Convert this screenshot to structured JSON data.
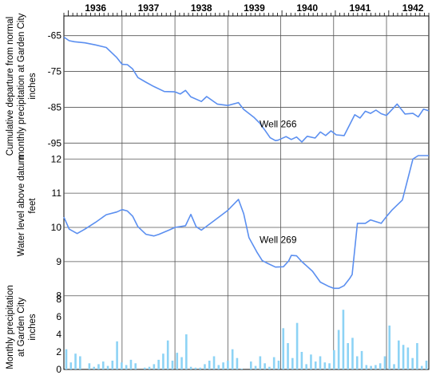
{
  "chart_data": {
    "type": "line",
    "years": [
      "1936",
      "1937",
      "1938",
      "1939",
      "1940",
      "1941",
      "1942"
    ],
    "xlim": [
      1935.9,
      1942.8
    ],
    "panels": {
      "precip_departure": {
        "ylabel": [
          "Cumulative departure from normal",
          "monthly precipitation at Garden City",
          "inches"
        ],
        "ylim": [
          -98.5,
          -59.5
        ],
        "ticks": [
          "-65",
          "-75",
          "-85",
          "-95"
        ],
        "tick_values": [
          -65,
          -75,
          -85,
          -95
        ],
        "series": {
          "name": "",
          "color": "#5b8ff0",
          "x": [
            1935.9,
            1936.0,
            1936.1,
            1936.3,
            1936.5,
            1936.7,
            1936.9,
            1937.0,
            1937.1,
            1937.2,
            1937.3,
            1937.45,
            1937.6,
            1937.8,
            1938.0,
            1938.1,
            1938.2,
            1938.3,
            1938.5,
            1938.6,
            1938.8,
            1939.0,
            1939.2,
            1939.3,
            1939.5,
            1939.6,
            1939.7,
            1939.8,
            1939.9,
            1939.95,
            1940.1,
            1940.2,
            1940.3,
            1940.4,
            1940.5,
            1940.65,
            1940.75,
            1940.85,
            1940.95,
            1941.05,
            1941.2,
            1941.4,
            1941.5,
            1941.6,
            1941.7,
            1941.8,
            1941.9,
            1942.0,
            1942.2,
            1942.35,
            1942.5,
            1942.6,
            1942.7,
            1942.8
          ],
          "y": [
            -65.4,
            -66.4,
            -66.7,
            -67.0,
            -67.6,
            -68.3,
            -71.1,
            -73.0,
            -73.1,
            -74.3,
            -76.7,
            -78.0,
            -79.2,
            -80.6,
            -80.7,
            -81.3,
            -80.3,
            -82.1,
            -83.4,
            -82.0,
            -84.1,
            -84.5,
            -83.7,
            -85.6,
            -87.9,
            -89.4,
            -91.4,
            -93.5,
            -94.3,
            -94.2,
            -93.2,
            -94.0,
            -93.3,
            -94.7,
            -93.1,
            -93.6,
            -91.9,
            -92.9,
            -91.6,
            -92.7,
            -92.9,
            -87.1,
            -88.0,
            -86.1,
            -86.7,
            -85.8,
            -86.8,
            -87.3,
            -84.1,
            -86.9,
            -86.7,
            -87.7,
            -85.5,
            -86.0
          ]
        },
        "label": "Well 266",
        "label_year": 1939.6,
        "label_value": -90.6
      },
      "water_level": {
        "ylabel": [
          "Water level above datum",
          "feet"
        ],
        "ylim": [
          7.9,
          12.1
        ],
        "ticks": [
          "12",
          "11",
          "10",
          "9",
          "8"
        ],
        "tick_values": [
          12,
          11,
          10,
          9,
          8
        ],
        "series": {
          "name": "",
          "color": "#5b8ff0",
          "x": [
            1935.9,
            1936.0,
            1936.15,
            1936.3,
            1936.5,
            1936.7,
            1936.9,
            1937.0,
            1937.1,
            1937.2,
            1937.3,
            1937.45,
            1937.6,
            1937.7,
            1937.9,
            1938.0,
            1938.2,
            1938.3,
            1938.4,
            1938.5,
            1938.7,
            1939.0,
            1939.2,
            1939.3,
            1939.4,
            1939.55,
            1939.65,
            1939.75,
            1939.9,
            1940.05,
            1940.15,
            1940.2,
            1940.3,
            1940.4,
            1940.6,
            1940.75,
            1940.9,
            1941.0,
            1941.1,
            1941.2,
            1941.3,
            1941.35,
            1941.45,
            1941.6,
            1941.7,
            1941.9,
            1942.0,
            1942.1,
            1942.2,
            1942.3,
            1942.5,
            1942.6,
            1942.8
          ],
          "y": [
            10.3,
            9.95,
            9.82,
            9.95,
            10.15,
            10.37,
            10.45,
            10.52,
            10.48,
            10.33,
            10.02,
            9.8,
            9.75,
            9.8,
            9.93,
            10.0,
            10.05,
            10.38,
            10.02,
            9.92,
            10.15,
            10.5,
            10.82,
            10.4,
            9.7,
            9.28,
            9.03,
            8.95,
            8.84,
            8.85,
            9.02,
            9.18,
            9.17,
            9.0,
            8.72,
            8.4,
            8.28,
            8.22,
            8.22,
            8.3,
            8.5,
            8.62,
            10.12,
            10.12,
            10.22,
            10.12,
            10.32,
            10.5,
            10.65,
            10.8,
            12.0,
            12.1,
            12.2
          ],
          "clip_top": 12.1
        },
        "label": "Well 269",
        "label_year": 1939.6,
        "label_value": 9.55
      },
      "monthly_precip": {
        "ylabel": [
          "Monthly precipitation",
          "at Garden City",
          "inches"
        ],
        "ylim": [
          0,
          8
        ],
        "ticks": [
          "8",
          "6",
          "4",
          "2",
          "0"
        ],
        "tick_values": [
          8,
          6,
          4,
          2,
          0
        ],
        "bar_color": "#8dd3f5",
        "values": [
          2.3,
          0.8,
          1.8,
          1.5,
          0.0,
          0.7,
          0.3,
          0.6,
          0.9,
          0.4,
          1.0,
          3.2,
          0.8,
          0.5,
          1.1,
          0.7,
          0.0,
          0.2,
          0.3,
          0.6,
          1.1,
          1.8,
          3.3,
          1.0,
          1.9,
          1.4,
          4.0,
          0.3,
          0.2,
          0.2,
          0.6,
          1.0,
          1.5,
          0.5,
          0.8,
          1.0,
          2.3,
          1.3,
          0.1,
          0.0,
          0.9,
          0.4,
          1.5,
          0.7,
          0.3,
          1.4,
          1.0,
          4.7,
          3.0,
          1.3,
          5.3,
          2.0,
          0.6,
          1.7,
          0.9,
          1.5,
          0.8,
          0.7,
          2.2,
          4.5,
          6.8,
          3.0,
          3.6,
          1.5,
          2.1,
          0.5,
          0.4,
          0.5,
          0.7,
          1.5,
          5.0,
          0.6,
          3.3,
          2.8,
          2.5,
          1.3,
          3.0,
          0.4,
          1.0
        ]
      }
    }
  }
}
